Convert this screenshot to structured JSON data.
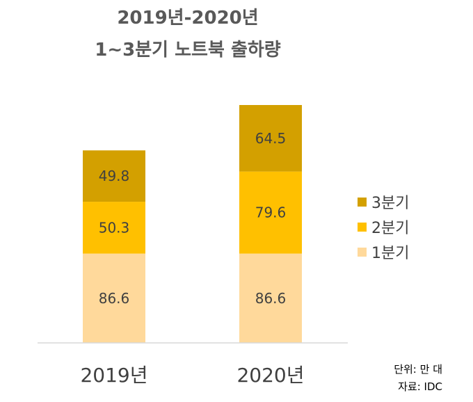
{
  "chart_data": {
    "type": "bar",
    "stacked": true,
    "title": [
      "2019년-2020년",
      "1~3분기 노트북 출하량"
    ],
    "categories": [
      "2019년",
      "2020년"
    ],
    "series": [
      {
        "name": "1분기",
        "values": [
          86.6,
          86.6
        ],
        "color": "#ffd99b"
      },
      {
        "name": "2분기",
        "values": [
          50.3,
          79.6
        ],
        "color": "#ffc000"
      },
      {
        "name": "3분기",
        "values": [
          49.8,
          64.5
        ],
        "color": "#d3a000"
      }
    ],
    "ylim": [
      0,
      230.7
    ],
    "grid": false,
    "legend_position": "right",
    "notes": [
      "단위: 만 대",
      "자료: IDC"
    ]
  }
}
